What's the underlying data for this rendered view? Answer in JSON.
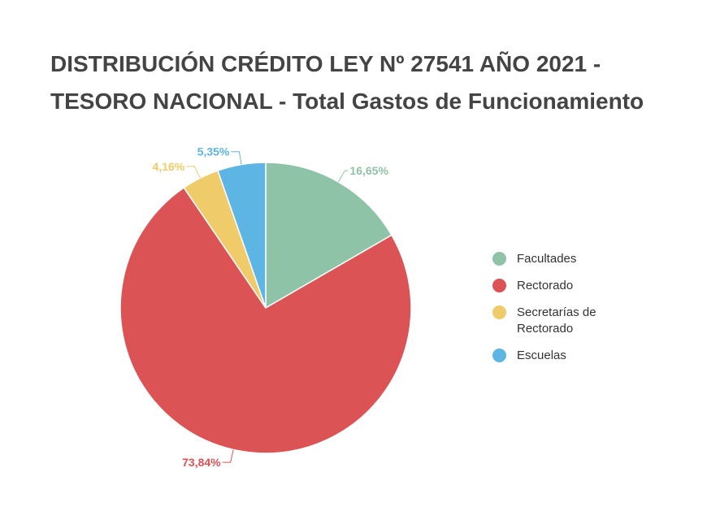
{
  "chart_data": {
    "type": "pie",
    "title": "DISTRIBUCIÓN CRÉDITO LEY Nº 27541 AÑO 2021 - TESORO NACIONAL - Total Gastos de Funcionamiento",
    "categories": [
      "Facultades",
      "Rectorado",
      "Secretarías de Rectorado",
      "Escuelas"
    ],
    "values": [
      16.65,
      73.84,
      4.16,
      5.35
    ],
    "value_labels": [
      "16,65%",
      "73,84%",
      "4,16%",
      "5,35%"
    ],
    "colors": [
      "#8fc3a8",
      "#dc5356",
      "#f0cb69",
      "#5db5e4"
    ],
    "start_angle_deg": 0,
    "direction": "clockwise",
    "legend": "right"
  }
}
